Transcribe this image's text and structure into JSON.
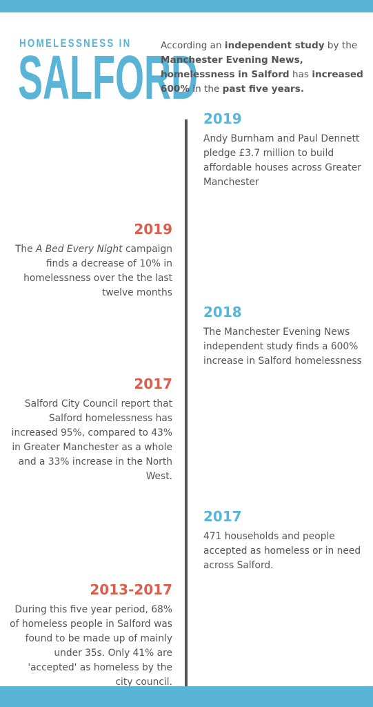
{
  "header": {
    "title_small": "HOMELESSNESS IN",
    "title_large": "SALFORD",
    "intro": [
      {
        "text": "According an ",
        "bold": false
      },
      {
        "text": "independent study",
        "bold": true
      },
      {
        "text": " by the ",
        "bold": false
      },
      {
        "text": "Manchester Evening News, homelessness in Salford",
        "bold": true
      },
      {
        "text": " has ",
        "bold": false
      },
      {
        "text": "increased 600%",
        "bold": true
      },
      {
        "text": " in the ",
        "bold": false
      },
      {
        "text": "past five years.",
        "bold": true
      }
    ]
  },
  "timeline": [
    {
      "year": "2019",
      "color": "#5ab4d6",
      "description": [
        {
          "text": "Andy Burnham and Paul Dennett pledge £3.7 million to build affordable houses across Greater Manchester",
          "italic": false
        }
      ]
    },
    {
      "year": "2019",
      "color": "#d9604f",
      "description": [
        {
          "text": "The ",
          "italic": false
        },
        {
          "text": "A Bed Every Night",
          "italic": true
        },
        {
          "text": " campaign finds a decrease of 10% in homelessness over the the last twelve months",
          "italic": false
        }
      ]
    },
    {
      "year": "2018",
      "color": "#5ab4d6",
      "description": [
        {
          "text": "The Manchester Evening News independent study finds a 600% increase in Salford homelessness",
          "italic": false
        }
      ]
    },
    {
      "year": "2017",
      "color": "#d9604f",
      "description": [
        {
          "text": "Salford City Council report that Salford homelessness has increased 95%, compared to 43% in Greater Manchester as a whole and a 33% increase in the North West.",
          "italic": false
        }
      ]
    },
    {
      "year": "2017",
      "color": "#5ab4d6",
      "description": [
        {
          "text": "471 households and people accepted as homeless or in need across Salford.",
          "italic": false
        }
      ]
    },
    {
      "year": "2013-2017",
      "color": "#d9604f",
      "description": [
        {
          "text": "During this five year period, 68% of homeless people in Salford was found to be made up of mainly under 35s. Only 41% are 'accepted' as homeless by the city council.",
          "italic": false
        }
      ]
    }
  ]
}
